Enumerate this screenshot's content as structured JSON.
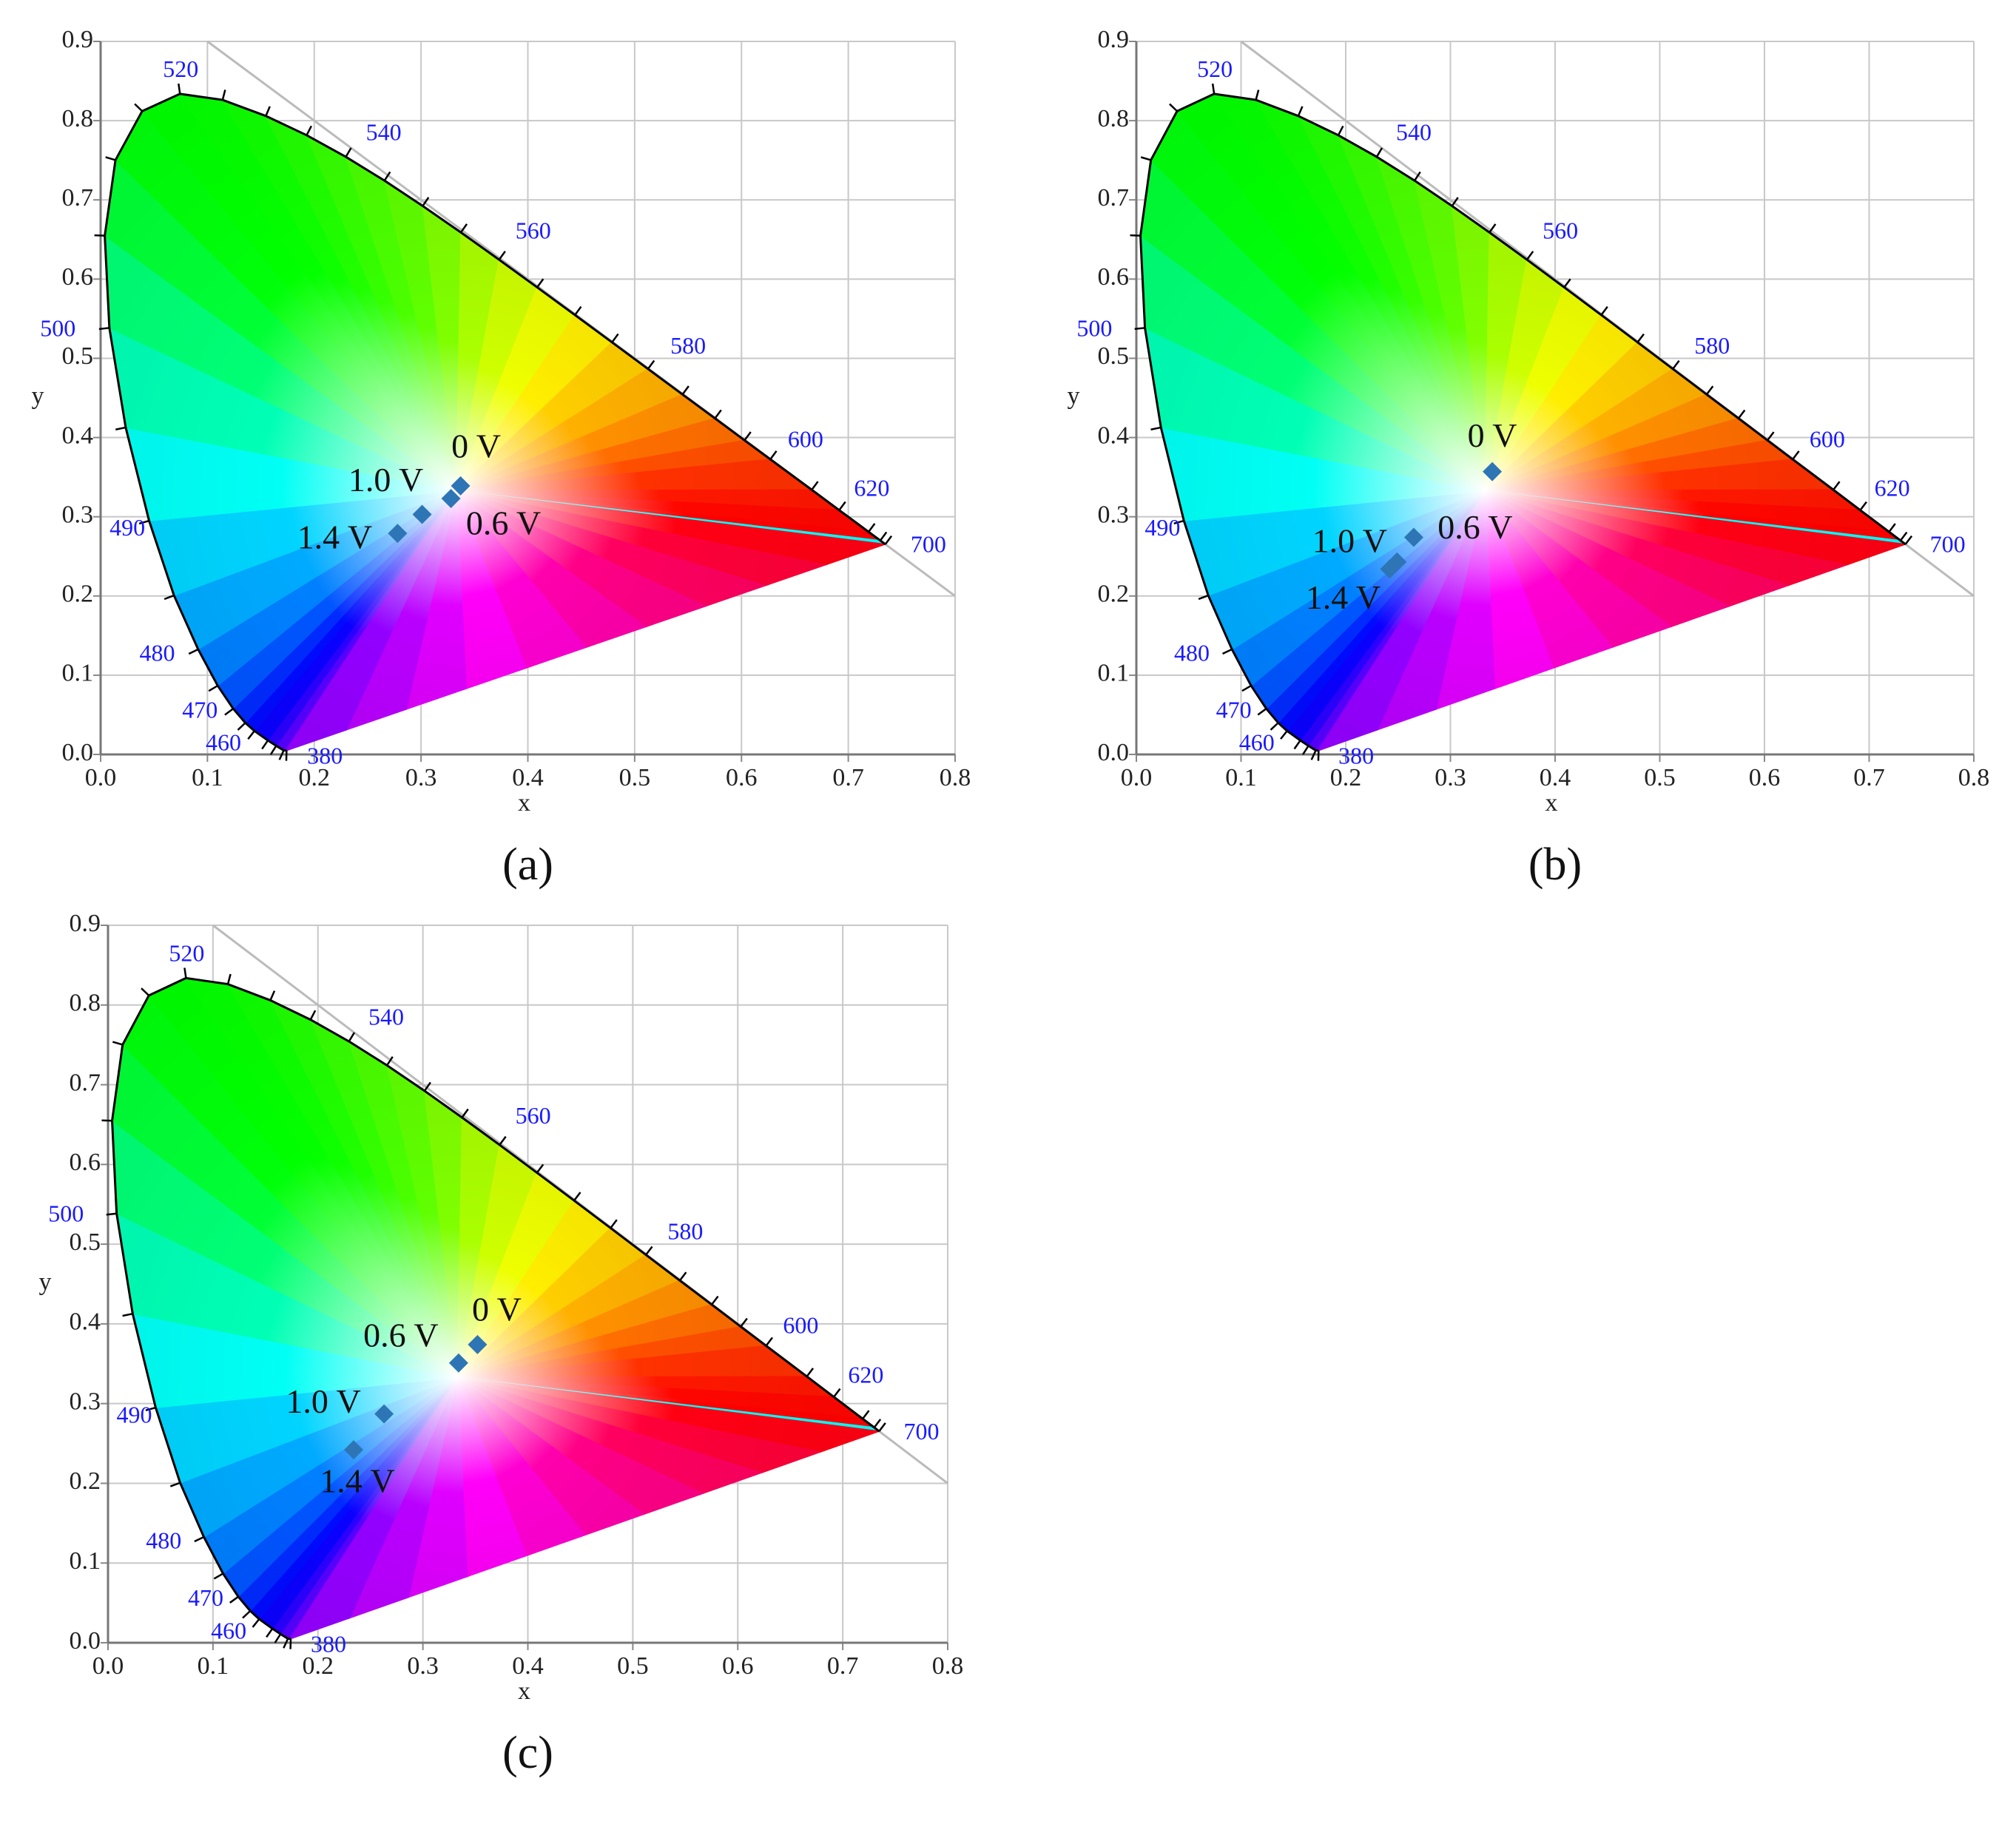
{
  "chart_data": [
    {
      "type": "scatter",
      "caption": "(a)",
      "xlabel": "x",
      "ylabel": "y",
      "xlim": [
        0,
        0.8
      ],
      "ylim": [
        0,
        0.9
      ],
      "xticks": [
        {
          "value": 0,
          "label": "0.0"
        },
        0.1,
        0.2,
        0.3,
        0.4,
        0.5,
        0.6,
        0.7,
        0.8
      ],
      "yticks": [
        {
          "value": 0,
          "label": "0.0"
        },
        0.1,
        0.2,
        0.3,
        0.4,
        0.5,
        0.6,
        0.7,
        0.8,
        0.9
      ],
      "grid": true,
      "wavelength_labels": [
        520,
        540,
        560,
        580,
        600,
        620,
        700,
        500,
        490,
        480,
        470,
        460,
        380
      ],
      "series": [
        {
          "color": "#2e75b6",
          "x": [
            0.337,
            0.328,
            0.301,
            0.278
          ],
          "values": [
            0.339,
            0.323,
            0.303,
            0.279
          ],
          "point_labels": [
            "0 V",
            "0.6 V",
            "1.0 V",
            "1.4 V"
          ]
        }
      ]
    },
    {
      "type": "scatter",
      "caption": "(b)",
      "xlabel": "x",
      "ylabel": "y",
      "xlim": [
        0,
        0.8
      ],
      "ylim": [
        0,
        0.9
      ],
      "xticks": [
        {
          "value": 0,
          "label": "0.0"
        },
        0.1,
        0.2,
        0.3,
        0.4,
        0.5,
        0.6,
        0.7,
        0.8
      ],
      "yticks": [
        {
          "value": 0,
          "label": "0.0"
        },
        0.1,
        0.2,
        0.3,
        0.4,
        0.5,
        0.6,
        0.7,
        0.8,
        0.9
      ],
      "grid": true,
      "wavelength_labels": [
        520,
        540,
        560,
        580,
        600,
        620,
        700,
        500,
        490,
        480,
        470,
        460,
        380
      ],
      "series": [
        {
          "color": "#2e75b6",
          "x": [
            0.34,
            0.265,
            0.249,
            0.242
          ],
          "values": [
            0.357,
            0.274,
            0.243,
            0.234
          ],
          "point_labels": [
            "0 V",
            "0.6 V",
            "1.0 V",
            "1.4 V"
          ]
        }
      ]
    },
    {
      "type": "scatter",
      "caption": "(c)",
      "xlabel": "x",
      "ylabel": "y",
      "xlim": [
        0,
        0.8
      ],
      "ylim": [
        0,
        0.9
      ],
      "xticks": [
        {
          "value": 0,
          "label": "0.0"
        },
        0.1,
        0.2,
        0.3,
        0.4,
        0.5,
        0.6,
        0.7,
        0.8
      ],
      "yticks": [
        {
          "value": 0,
          "label": "0.0"
        },
        0.1,
        0.2,
        0.3,
        0.4,
        0.5,
        0.6,
        0.7,
        0.8,
        0.9
      ],
      "grid": true,
      "wavelength_labels": [
        520,
        540,
        560,
        580,
        600,
        620,
        700,
        500,
        490,
        480,
        470,
        460,
        380
      ],
      "series": [
        {
          "color": "#2e75b6",
          "x": [
            0.352,
            0.334,
            0.263,
            0.234
          ],
          "values": [
            0.374,
            0.351,
            0.287,
            0.242
          ],
          "point_labels": [
            "0 V",
            "0.6 V",
            "1.0 V",
            "1.4 V"
          ]
        }
      ]
    }
  ]
}
